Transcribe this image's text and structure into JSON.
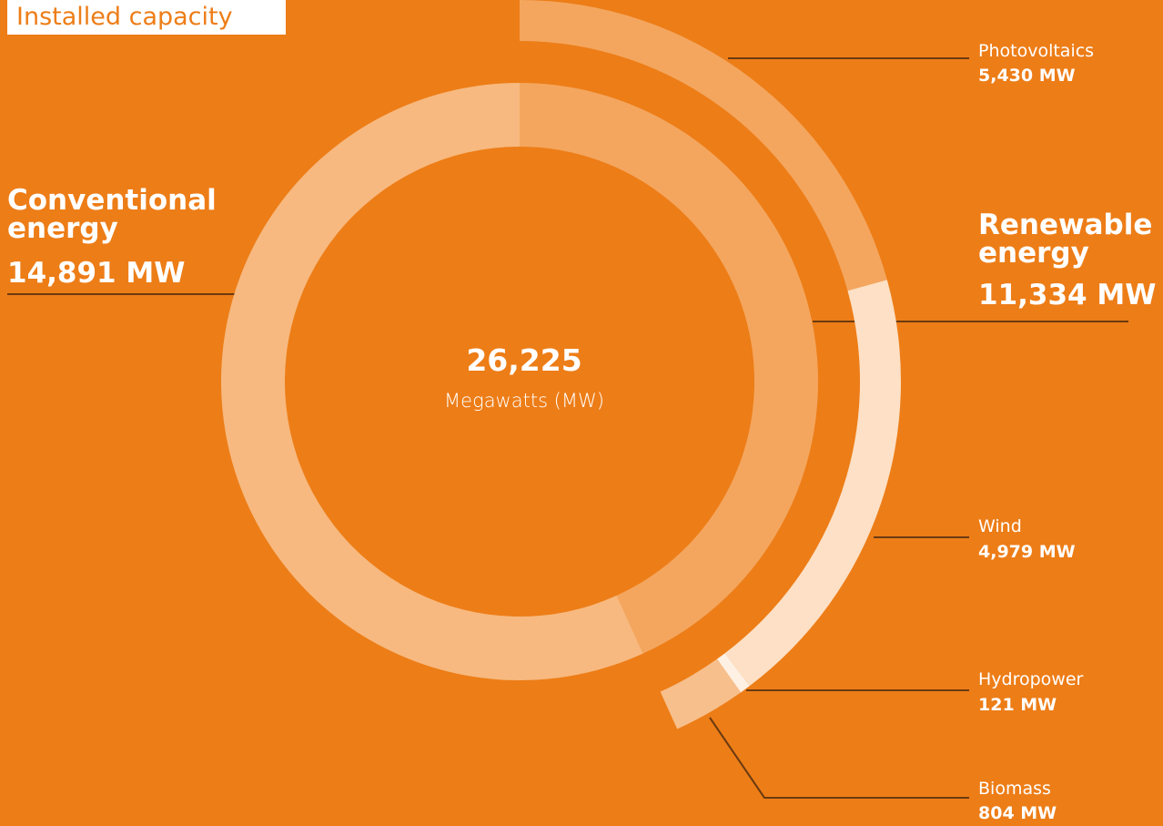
{
  "chart_data": {
    "type": "donut",
    "title": "Installed capacity",
    "total_label": "26,225",
    "center_label": "Megawatts (MW)",
    "inner": {
      "categories": [
        "Renewable energy",
        "Conventional energy"
      ],
      "values": [
        11334,
        14891
      ],
      "value_labels": [
        "11,334 MW",
        "14,891 MW"
      ],
      "colors": [
        "#f4a65e",
        "#f7b97f"
      ]
    },
    "outer": {
      "categories": [
        "Photovoltaics",
        "Wind",
        "Hydropower",
        "Biomass"
      ],
      "values": [
        5430,
        4979,
        121,
        804
      ],
      "value_labels": [
        "5,430 MW",
        "4,979 MW",
        "121 MW",
        "804 MW"
      ],
      "colors": [
        "#f4a65e",
        "#fde0c5",
        "#fef0e3",
        "#f7bf8b"
      ]
    }
  }
}
